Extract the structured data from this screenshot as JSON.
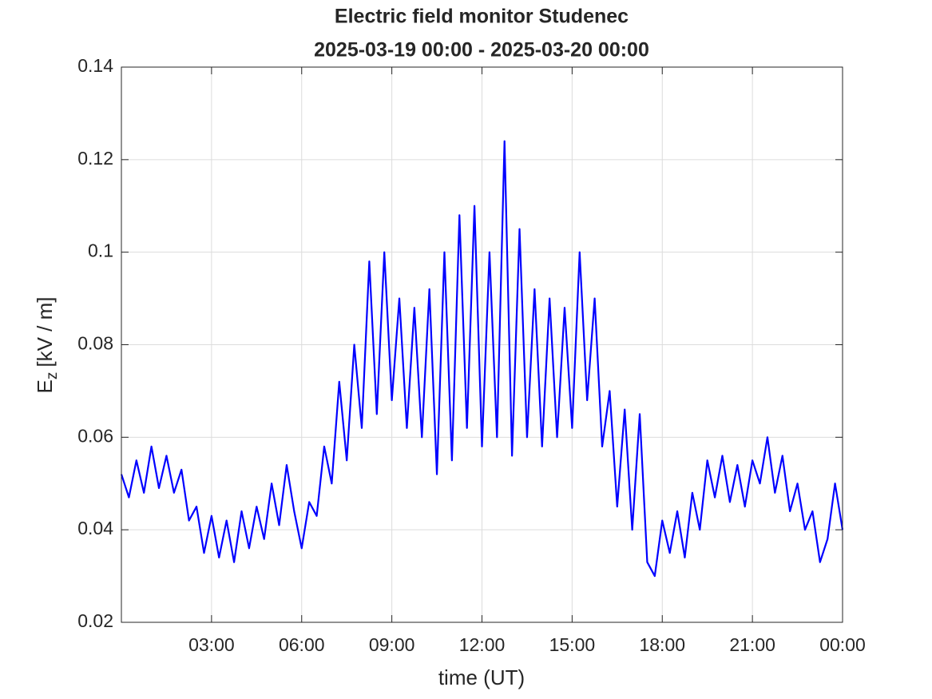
{
  "chart_data": {
    "type": "line",
    "title": "Electric field monitor Studenec",
    "subtitle": "2025-03-19 00:00 - 2025-03-20 00:00",
    "xlabel": "time (UT)",
    "ylabel": {
      "main": "E",
      "sub": "z",
      "unit": "[kV / m]"
    },
    "xlim": [
      0,
      24
    ],
    "xticks": [
      {
        "value": 3,
        "label": "03:00"
      },
      {
        "value": 6,
        "label": "06:00"
      },
      {
        "value": 9,
        "label": "09:00"
      },
      {
        "value": 12,
        "label": "12:00"
      },
      {
        "value": 15,
        "label": "15:00"
      },
      {
        "value": 18,
        "label": "18:00"
      },
      {
        "value": 21,
        "label": "21:00"
      },
      {
        "value": 24,
        "label": "00:00"
      }
    ],
    "ylim": [
      0.02,
      0.14
    ],
    "yticks": [
      0.02,
      0.04,
      0.06,
      0.08,
      0.1,
      0.12,
      0.14
    ],
    "grid": true,
    "x": [
      0,
      0.25,
      0.5,
      0.75,
      1,
      1.25,
      1.5,
      1.75,
      2,
      2.25,
      2.5,
      2.75,
      3,
      3.25,
      3.5,
      3.75,
      4,
      4.25,
      4.5,
      4.75,
      5,
      5.25,
      5.5,
      5.75,
      6,
      6.25,
      6.5,
      6.75,
      7,
      7.25,
      7.5,
      7.75,
      8,
      8.25,
      8.5,
      8.75,
      9,
      9.25,
      9.5,
      9.75,
      10,
      10.25,
      10.5,
      10.75,
      11,
      11.25,
      11.5,
      11.75,
      12,
      12.25,
      12.5,
      12.75,
      13,
      13.25,
      13.5,
      13.75,
      14,
      14.25,
      14.5,
      14.75,
      15,
      15.25,
      15.5,
      15.75,
      16,
      16.25,
      16.5,
      16.75,
      17,
      17.25,
      17.5,
      17.75,
      18,
      18.25,
      18.5,
      18.75,
      19,
      19.25,
      19.5,
      19.75,
      20,
      20.25,
      20.5,
      20.75,
      21,
      21.25,
      21.5,
      21.75,
      22,
      22.25,
      22.5,
      22.75,
      23,
      23.25,
      23.5,
      23.75,
      24
    ],
    "series": [
      {
        "color": "#0000ff",
        "values": [
          0.052,
          0.047,
          0.055,
          0.048,
          0.058,
          0.049,
          0.056,
          0.048,
          0.053,
          0.042,
          0.045,
          0.035,
          0.043,
          0.034,
          0.042,
          0.033,
          0.044,
          0.036,
          0.045,
          0.038,
          0.05,
          0.041,
          0.054,
          0.044,
          0.036,
          0.046,
          0.043,
          0.058,
          0.05,
          0.072,
          0.055,
          0.08,
          0.062,
          0.098,
          0.065,
          0.1,
          0.068,
          0.09,
          0.062,
          0.088,
          0.06,
          0.092,
          0.052,
          0.1,
          0.055,
          0.108,
          0.062,
          0.11,
          0.058,
          0.1,
          0.06,
          0.124,
          0.056,
          0.105,
          0.06,
          0.092,
          0.058,
          0.09,
          0.06,
          0.088,
          0.062,
          0.1,
          0.068,
          0.09,
          0.058,
          0.07,
          0.045,
          0.066,
          0.04,
          0.065,
          0.033,
          0.03,
          0.042,
          0.035,
          0.044,
          0.034,
          0.048,
          0.04,
          0.055,
          0.047,
          0.056,
          0.046,
          0.054,
          0.045,
          0.055,
          0.05,
          0.06,
          0.048,
          0.056,
          0.044,
          0.05,
          0.04,
          0.044,
          0.033,
          0.038,
          0.05,
          0.04
        ]
      }
    ]
  }
}
